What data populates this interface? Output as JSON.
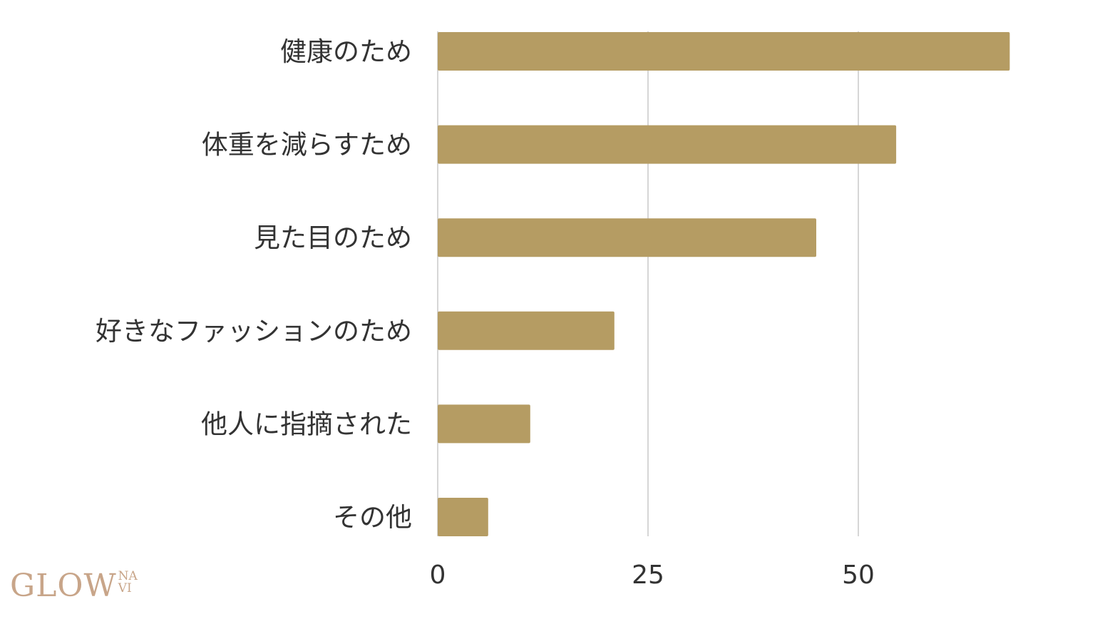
{
  "chart_data": {
    "type": "bar",
    "orientation": "horizontal",
    "categories": [
      "健康のため",
      "体重を減らすため",
      "見た目のため",
      "好きなファッションのため",
      "他人に指摘された",
      "その他"
    ],
    "values": [
      68,
      54.5,
      45,
      21,
      11,
      6
    ],
    "xticks": [
      "0",
      "25",
      "50"
    ],
    "xtick_values": [
      0,
      25,
      50
    ],
    "xlim": [
      0,
      70
    ],
    "grid": "vertical",
    "title": "",
    "xlabel": "",
    "ylabel": "",
    "bar_color": "#b59c63"
  },
  "logo": {
    "main": "GLOW",
    "sub_top": "NA",
    "sub_bottom": "VI",
    "color": "#c8a589"
  }
}
